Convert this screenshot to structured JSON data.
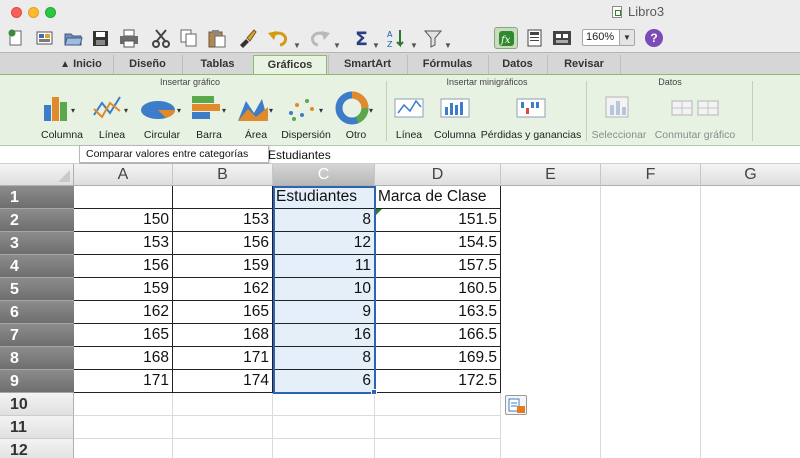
{
  "window": {
    "title": "Libro3"
  },
  "toolbar": {
    "zoom": "160%",
    "icons": [
      "new-icon",
      "templates-icon",
      "open-icon",
      "save-icon",
      "print-icon",
      "cut-icon",
      "copy-icon",
      "paste-icon",
      "format-brush-icon",
      "undo-icon",
      "redo-icon",
      "autosum-icon",
      "sort-icon",
      "filter-icon",
      "function-icon",
      "gallery-icon",
      "toolbox-icon",
      "help-icon"
    ]
  },
  "tabs": [
    {
      "label": "Inicio"
    },
    {
      "label": "Diseño"
    },
    {
      "label": "Tablas"
    },
    {
      "label": "Gráficos",
      "active": true
    },
    {
      "label": "SmartArt"
    },
    {
      "label": "Fórmulas"
    },
    {
      "label": "Datos"
    },
    {
      "label": "Revisar"
    }
  ],
  "ribbon": {
    "groups": {
      "insert_chart": "Insertar gráfico",
      "insert_sparklines": "Insertar minigráficos",
      "data": "Datos"
    },
    "chart_buttons": [
      "Columna",
      "Línea",
      "Circular",
      "Barra",
      "Área",
      "Dispersión",
      "Otro"
    ],
    "sparkline_buttons": [
      "Línea",
      "Columna",
      "Pérdidas y ganancias"
    ],
    "data_buttons": [
      "Seleccionar",
      "Conmutar gráfico"
    ]
  },
  "tooltip": "Comparar valores entre categorías",
  "formula_bar": {
    "content": "Estudiantes"
  },
  "sheet": {
    "columns": [
      "A",
      "B",
      "C",
      "D",
      "E",
      "F",
      "G"
    ],
    "selected_column": "C",
    "rows": [
      "1",
      "2",
      "3",
      "4",
      "5",
      "6",
      "7",
      "8",
      "9",
      "10",
      "11",
      "12"
    ],
    "headers": {
      "C": "Estudiantes",
      "D": "Marca de Clase"
    },
    "data": [
      {
        "A": "150",
        "B": "153",
        "C": "8",
        "D": "151.5"
      },
      {
        "A": "153",
        "B": "156",
        "C": "12",
        "D": "154.5"
      },
      {
        "A": "156",
        "B": "159",
        "C": "11",
        "D": "157.5"
      },
      {
        "A": "159",
        "B": "162",
        "C": "10",
        "D": "160.5"
      },
      {
        "A": "162",
        "B": "165",
        "C": "9",
        "D": "163.5"
      },
      {
        "A": "165",
        "B": "168",
        "C": "16",
        "D": "166.5"
      },
      {
        "A": "168",
        "B": "171",
        "C": "8",
        "D": "169.5"
      },
      {
        "A": "171",
        "B": "174",
        "C": "6",
        "D": "172.5"
      }
    ]
  },
  "colors": {
    "selection": "#2e62b4",
    "selected_fill": "#e4effa",
    "active_tab": "#e9f3e3"
  }
}
